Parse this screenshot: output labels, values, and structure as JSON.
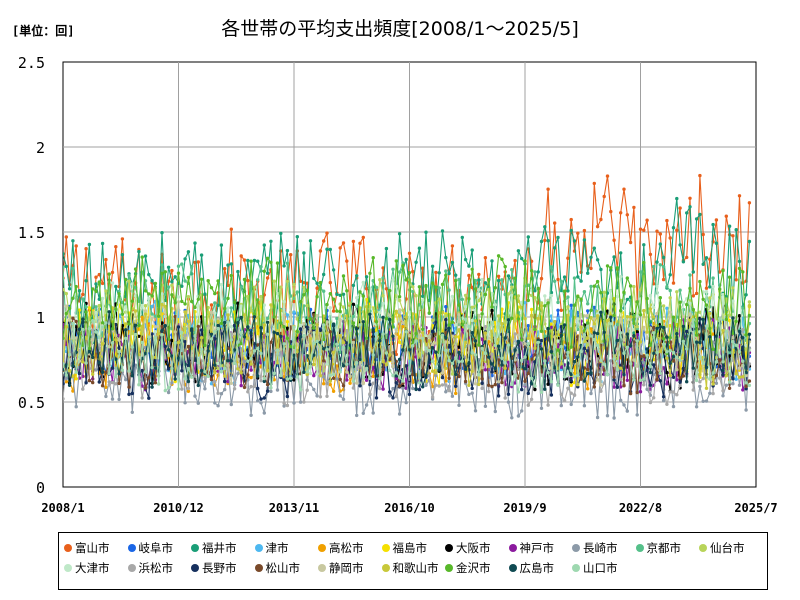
{
  "header": {
    "unit": "[単位：回]",
    "title": "各世帯の平均支出頻度[2008/1～2025/5]"
  },
  "chart_data": {
    "type": "line",
    "title": "各世帯の平均支出頻度[2008/1～2025/5]",
    "unit": "[単位：回]",
    "ylim": [
      0,
      2.5
    ],
    "yticks": [
      {
        "value": 0,
        "label": "0"
      },
      {
        "value": 0.5,
        "label": "0.5"
      },
      {
        "value": 1,
        "label": "1"
      },
      {
        "value": 1.5,
        "label": "1.5"
      },
      {
        "value": 2,
        "label": "2"
      },
      {
        "value": 2.5,
        "label": "2.5"
      }
    ],
    "xrange": [
      "2008-01",
      "2025-07"
    ],
    "xticks": [
      {
        "value": "2008-01",
        "label": "2008/1"
      },
      {
        "value": "2010-12",
        "label": "2010/12"
      },
      {
        "value": "2013-11",
        "label": "2013/11"
      },
      {
        "value": "2016-10",
        "label": "2016/10"
      },
      {
        "value": "2019-09",
        "label": "2019/9"
      },
      {
        "value": "2022-08",
        "label": "2022/8"
      },
      {
        "value": "2025-07",
        "label": "2025/7"
      }
    ],
    "grid": true,
    "legend_position": "bottom",
    "series": [
      {
        "name": "富山市",
        "color": "#e8601c",
        "base": 1.15,
        "spread": 0.2
      },
      {
        "name": "岐阜市",
        "color": "#1a66e6",
        "base": 0.85,
        "spread": 0.12
      },
      {
        "name": "福井市",
        "color": "#1a9e77",
        "base": 1.2,
        "spread": 0.18
      },
      {
        "name": "津市",
        "color": "#4db8f0",
        "base": 0.85,
        "spread": 0.13
      },
      {
        "name": "高松市",
        "color": "#f0a000",
        "base": 0.78,
        "spread": 0.12
      },
      {
        "name": "福島市",
        "color": "#f5e000",
        "base": 0.85,
        "spread": 0.14
      },
      {
        "name": "大阪市",
        "color": "#000000",
        "base": 0.82,
        "spread": 0.14
      },
      {
        "name": "神戸市",
        "color": "#8b1a9e",
        "base": 0.78,
        "spread": 0.12
      },
      {
        "name": "長崎市",
        "color": "#8c9aa8",
        "base": 0.65,
        "spread": 0.14
      },
      {
        "name": "京都市",
        "color": "#55c08a",
        "base": 1.05,
        "spread": 0.15
      },
      {
        "name": "仙台市",
        "color": "#b8d45a",
        "base": 0.95,
        "spread": 0.15
      },
      {
        "name": "大津市",
        "color": "#bfe8c8",
        "base": 0.95,
        "spread": 0.15
      },
      {
        "name": "浜松市",
        "color": "#a8a8a8",
        "base": 0.72,
        "spread": 0.13
      },
      {
        "name": "長野市",
        "color": "#16305e",
        "base": 0.75,
        "spread": 0.13
      },
      {
        "name": "松山市",
        "color": "#7a4a2a",
        "base": 0.78,
        "spread": 0.12
      },
      {
        "name": "静岡市",
        "color": "#c8c8a0",
        "base": 0.85,
        "spread": 0.13
      },
      {
        "name": "和歌山市",
        "color": "#c8c83a",
        "base": 0.85,
        "spread": 0.14
      },
      {
        "name": "金沢市",
        "color": "#58b82a",
        "base": 1.05,
        "spread": 0.16
      },
      {
        "name": "広島市",
        "color": "#0f4a52",
        "base": 0.8,
        "spread": 0.12
      },
      {
        "name": "山口市",
        "color": "#9ed8b0",
        "base": 0.78,
        "spread": 0.12
      }
    ]
  }
}
